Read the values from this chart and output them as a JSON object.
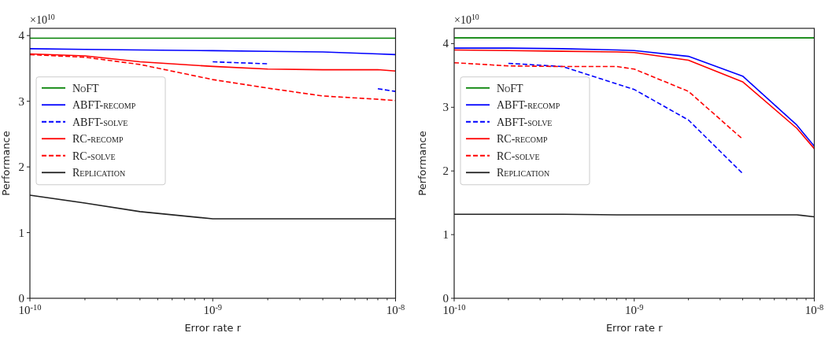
{
  "chart_data": [
    {
      "type": "line",
      "xlabel": "Error rate r",
      "ylabel": "Performance",
      "annotations": [
        "×10$^{10}$"
      ],
      "log": "x",
      "legend": "left",
      "grid": false,
      "x": [
        1e-10,
        2e-10,
        4e-10,
        1e-09,
        2e-09,
        4e-09,
        8e-09,
        1e-08
      ],
      "xlim": [
        1e-10,
        1e-08
      ],
      "xticks": [
        {
          "value": 1e-10,
          "label": "10$^{-10}$"
        },
        {
          "value": 2e-10,
          "label": null
        },
        {
          "value": 3e-10,
          "label": null
        },
        {
          "value": 4e-10,
          "label": null
        },
        {
          "value": 5e-10,
          "label": null
        },
        {
          "value": 6e-10,
          "label": null
        },
        {
          "value": 7e-10,
          "label": null
        },
        {
          "value": 8e-10,
          "label": null
        },
        {
          "value": 9e-10,
          "label": null
        },
        {
          "value": 1e-09,
          "label": "10$^{-9}$"
        },
        {
          "value": 2e-09,
          "label": null
        },
        {
          "value": 3e-09,
          "label": null
        },
        {
          "value": 4e-09,
          "label": null
        },
        {
          "value": 5e-09,
          "label": null
        },
        {
          "value": 6e-09,
          "label": null
        },
        {
          "value": 7e-09,
          "label": null
        },
        {
          "value": 8e-09,
          "label": null
        },
        {
          "value": 9e-09,
          "label": null
        },
        {
          "value": 1e-08,
          "label": "10$^{-8}$"
        }
      ],
      "ylim": [
        0,
        4.11
      ],
      "yticks": [
        0,
        1,
        2,
        3,
        4
      ],
      "series": [
        {
          "name": "NoFT",
          "color": "#008000",
          "line_style": "solid",
          "values": [
            3.96,
            3.96,
            3.96,
            3.96,
            3.96,
            3.96,
            3.96,
            3.96
          ]
        },
        {
          "name": "ABFT-recomp",
          "color": "#0000ff",
          "line_style": "solid",
          "values": [
            3.8,
            3.79,
            3.78,
            3.77,
            3.76,
            3.75,
            3.72,
            3.71
          ]
        },
        {
          "name": "ABFT-solve",
          "color": "#0000ff",
          "line_style": "dashed",
          "values": [
            null,
            null,
            null,
            3.6,
            3.57,
            null,
            3.19,
            3.15
          ]
        },
        {
          "name": "RC-recomp",
          "color": "#ff0000",
          "line_style": "solid",
          "values": [
            3.72,
            3.69,
            3.6,
            3.53,
            3.49,
            3.48,
            3.48,
            3.46
          ]
        },
        {
          "name": "RC-solve",
          "color": "#ff0000",
          "line_style": "dashed",
          "values": [
            3.71,
            3.67,
            3.56,
            3.33,
            3.2,
            3.08,
            3.03,
            3.01
          ]
        },
        {
          "name": "Replication",
          "color": "#222222",
          "line_style": "solid",
          "values": [
            1.57,
            1.45,
            1.32,
            1.21,
            1.21,
            1.21,
            1.21,
            1.21
          ]
        }
      ]
    },
    {
      "type": "line",
      "xlabel": "Error rate r",
      "ylabel": "Performance",
      "annotations": [
        "×10$^{10}$"
      ],
      "log": "x",
      "legend": "left",
      "grid": false,
      "x": [
        1e-10,
        2e-10,
        4e-10,
        8e-10,
        1e-09,
        2e-09,
        4e-09,
        8e-09,
        1e-08
      ],
      "xlim": [
        1e-10,
        1e-08
      ],
      "xticks": [
        {
          "value": 1e-10,
          "label": "10$^{-10}$"
        },
        {
          "value": 2e-10,
          "label": null
        },
        {
          "value": 3e-10,
          "label": null
        },
        {
          "value": 4e-10,
          "label": null
        },
        {
          "value": 5e-10,
          "label": null
        },
        {
          "value": 6e-10,
          "label": null
        },
        {
          "value": 7e-10,
          "label": null
        },
        {
          "value": 8e-10,
          "label": null
        },
        {
          "value": 9e-10,
          "label": null
        },
        {
          "value": 1e-09,
          "label": "10$^{-9}$"
        },
        {
          "value": 2e-09,
          "label": null
        },
        {
          "value": 3e-09,
          "label": null
        },
        {
          "value": 4e-09,
          "label": null
        },
        {
          "value": 5e-09,
          "label": null
        },
        {
          "value": 6e-09,
          "label": null
        },
        {
          "value": 7e-09,
          "label": null
        },
        {
          "value": 8e-09,
          "label": null
        },
        {
          "value": 9e-09,
          "label": null
        },
        {
          "value": 1e-08,
          "label": "10$^{-8}$"
        }
      ],
      "ylim": [
        0,
        4.24
      ],
      "yticks": [
        0,
        1,
        2,
        3,
        4
      ],
      "series": [
        {
          "name": "NoFT",
          "color": "#008000",
          "line_style": "solid",
          "values": [
            4.09,
            4.09,
            4.09,
            4.09,
            4.09,
            4.09,
            4.09,
            4.09,
            4.09
          ]
        },
        {
          "name": "ABFT-recomp",
          "color": "#0000ff",
          "line_style": "solid",
          "values": [
            3.93,
            3.93,
            3.92,
            3.9,
            3.89,
            3.8,
            3.49,
            2.72,
            2.39
          ]
        },
        {
          "name": "ABFT-solve",
          "color": "#0000ff",
          "line_style": "dashed",
          "x": [
            2e-10,
            4e-10,
            1e-09,
            2e-09,
            4e-09
          ],
          "values": [
            3.69,
            3.64,
            3.28,
            2.8,
            1.96
          ]
        },
        {
          "name": "RC-recomp",
          "color": "#ff0000",
          "line_style": "solid",
          "values": [
            3.9,
            3.89,
            3.88,
            3.87,
            3.86,
            3.74,
            3.4,
            2.67,
            2.35
          ]
        },
        {
          "name": "RC-solve",
          "color": "#ff0000",
          "line_style": "dashed",
          "x": [
            1e-10,
            2e-10,
            4e-10,
            8e-10,
            1e-09,
            2e-09,
            4e-09
          ],
          "values": [
            3.7,
            3.65,
            3.64,
            3.64,
            3.6,
            3.25,
            2.5
          ]
        },
        {
          "name": "Replication",
          "color": "#222222",
          "line_style": "solid",
          "values": [
            1.32,
            1.32,
            1.32,
            1.31,
            1.31,
            1.31,
            1.31,
            1.31,
            1.28
          ]
        }
      ]
    }
  ]
}
